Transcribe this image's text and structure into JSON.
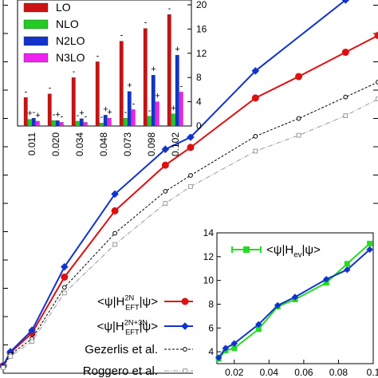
{
  "chart_data": [
    {
      "type": "line",
      "title": "",
      "xlabel": "",
      "ylabel": "",
      "xlim": [
        0.003,
        0.107
      ],
      "ylim": [
        0,
        40
      ],
      "grid": false,
      "legend_placement": "bottom-left",
      "series": [
        {
          "name": "<ψ|H_EFT^2N|ψ>",
          "name_parts": {
            "pre": "<ψ|H",
            "sup": "2N",
            "sub": "EFT",
            "post": "|ψ>"
          },
          "color": "#dd1111",
          "marker": "circle",
          "x": [
            0.003,
            0.005,
            0.011,
            0.02,
            0.034,
            0.048,
            0.055,
            0.073,
            0.085,
            0.098,
            0.107
          ],
          "y": [
            0.8,
            2.2,
            4.3,
            10.3,
            17.4,
            22.3,
            24.2,
            29.5,
            31.8,
            34.4,
            36.2
          ]
        },
        {
          "name": "<ψ|H_EFT^2N+3N|ψ>",
          "name_parts": {
            "pre": "<ψ|H",
            "sup": "2N+3N",
            "sub": "EFT",
            "post": "|ψ>"
          },
          "color": "#1133cc",
          "marker": "diamond",
          "x": [
            0.003,
            0.005,
            0.011,
            0.02,
            0.034,
            0.048,
            0.055,
            0.073,
            0.098
          ],
          "y": [
            0.8,
            2.3,
            4.6,
            11.4,
            19.2,
            24.0,
            25.3,
            32.4,
            40.0
          ]
        },
        {
          "name": "Gezerlis et al.",
          "color": "#000000",
          "marker": "open-circle",
          "dash": "3,2",
          "x": [
            0.003,
            0.005,
            0.011,
            0.02,
            0.034,
            0.048,
            0.055,
            0.073,
            0.085,
            0.098,
            0.107
          ],
          "y": [
            0.7,
            2.0,
            3.7,
            9.2,
            15.0,
            19.5,
            21.2,
            25.4,
            27.3,
            29.6,
            31.2
          ]
        },
        {
          "name": "Roggero et al.",
          "color": "#999999",
          "marker": "open-square",
          "dash": "6,2,1,2",
          "x": [
            0.003,
            0.005,
            0.011,
            0.02,
            0.034,
            0.048,
            0.055,
            0.073,
            0.085,
            0.098,
            0.107
          ],
          "y": [
            0.6,
            1.8,
            3.4,
            8.6,
            13.8,
            18.2,
            20.0,
            23.8,
            25.5,
            27.6,
            29.4
          ]
        }
      ]
    },
    {
      "type": "bar",
      "title": "",
      "xlabel": "",
      "ylabel": "",
      "ylim": [
        0,
        20
      ],
      "yticks": [
        0,
        4,
        8,
        12,
        16,
        20
      ],
      "categories": [
        "0.011",
        "0.020",
        "0.034",
        "0.048",
        "0.073",
        "0.098",
        "0.102"
      ],
      "legend_placement": "top-left",
      "series": [
        {
          "name": "LO",
          "color": "#cc1111",
          "values": [
            4.7,
            5.3,
            8.0,
            10.6,
            14.0,
            16.1,
            18.4
          ],
          "signs": [
            "-",
            "-",
            "-",
            "-",
            "-",
            "-",
            "-"
          ]
        },
        {
          "name": "NLO",
          "color": "#22cc22",
          "values": [
            1.1,
            0.9,
            0.8,
            0.5,
            1.3,
            1.6,
            2.0
          ],
          "signs": [
            "+",
            "-",
            "-",
            "-",
            "-",
            "-",
            "+"
          ]
        },
        {
          "name": "N2LO",
          "color": "#1133cc",
          "values": [
            1.3,
            0.9,
            1.2,
            1.8,
            5.7,
            8.4,
            11.7
          ],
          "signs": [
            "-",
            "+",
            "+",
            "+",
            "+",
            "+",
            "+"
          ]
        },
        {
          "name": "N3LO",
          "color": "#ee22ee",
          "values": [
            0.8,
            0.6,
            0.6,
            1.3,
            2.7,
            4.0,
            5.6
          ],
          "signs": [
            "+",
            "-",
            "-",
            "+",
            "-",
            "+",
            "-"
          ]
        }
      ]
    },
    {
      "type": "line",
      "title": "",
      "xlabel": "",
      "ylabel": "",
      "xlim": [
        0.01,
        0.1
      ],
      "ylim": [
        3,
        14
      ],
      "xticks": [
        "0.02",
        "0.04",
        "0.06",
        "0.08",
        "0.1"
      ],
      "yticks": [
        4,
        6,
        8,
        10,
        12,
        14
      ],
      "legend_placement": "top",
      "series": [
        {
          "name": "<ψ|H_ev|ψ>",
          "name_parts": {
            "pre": "<ψ|H",
            "sub": "ev",
            "post": "|ψ>"
          },
          "color": "#22dd22",
          "marker": "square",
          "x": [
            0.011,
            0.015,
            0.02,
            0.034,
            0.045,
            0.055,
            0.073,
            0.085,
            0.098
          ],
          "y": [
            3.4,
            4.1,
            4.3,
            5.9,
            7.8,
            8.4,
            9.8,
            11.4,
            13.1
          ]
        },
        {
          "name": "",
          "color": "#1133cc",
          "marker": "diamond",
          "x": [
            0.011,
            0.015,
            0.02,
            0.034,
            0.045,
            0.055,
            0.073,
            0.085,
            0.098
          ],
          "y": [
            3.5,
            4.3,
            4.7,
            6.3,
            7.9,
            8.6,
            10.1,
            10.9,
            12.6
          ]
        }
      ]
    }
  ]
}
